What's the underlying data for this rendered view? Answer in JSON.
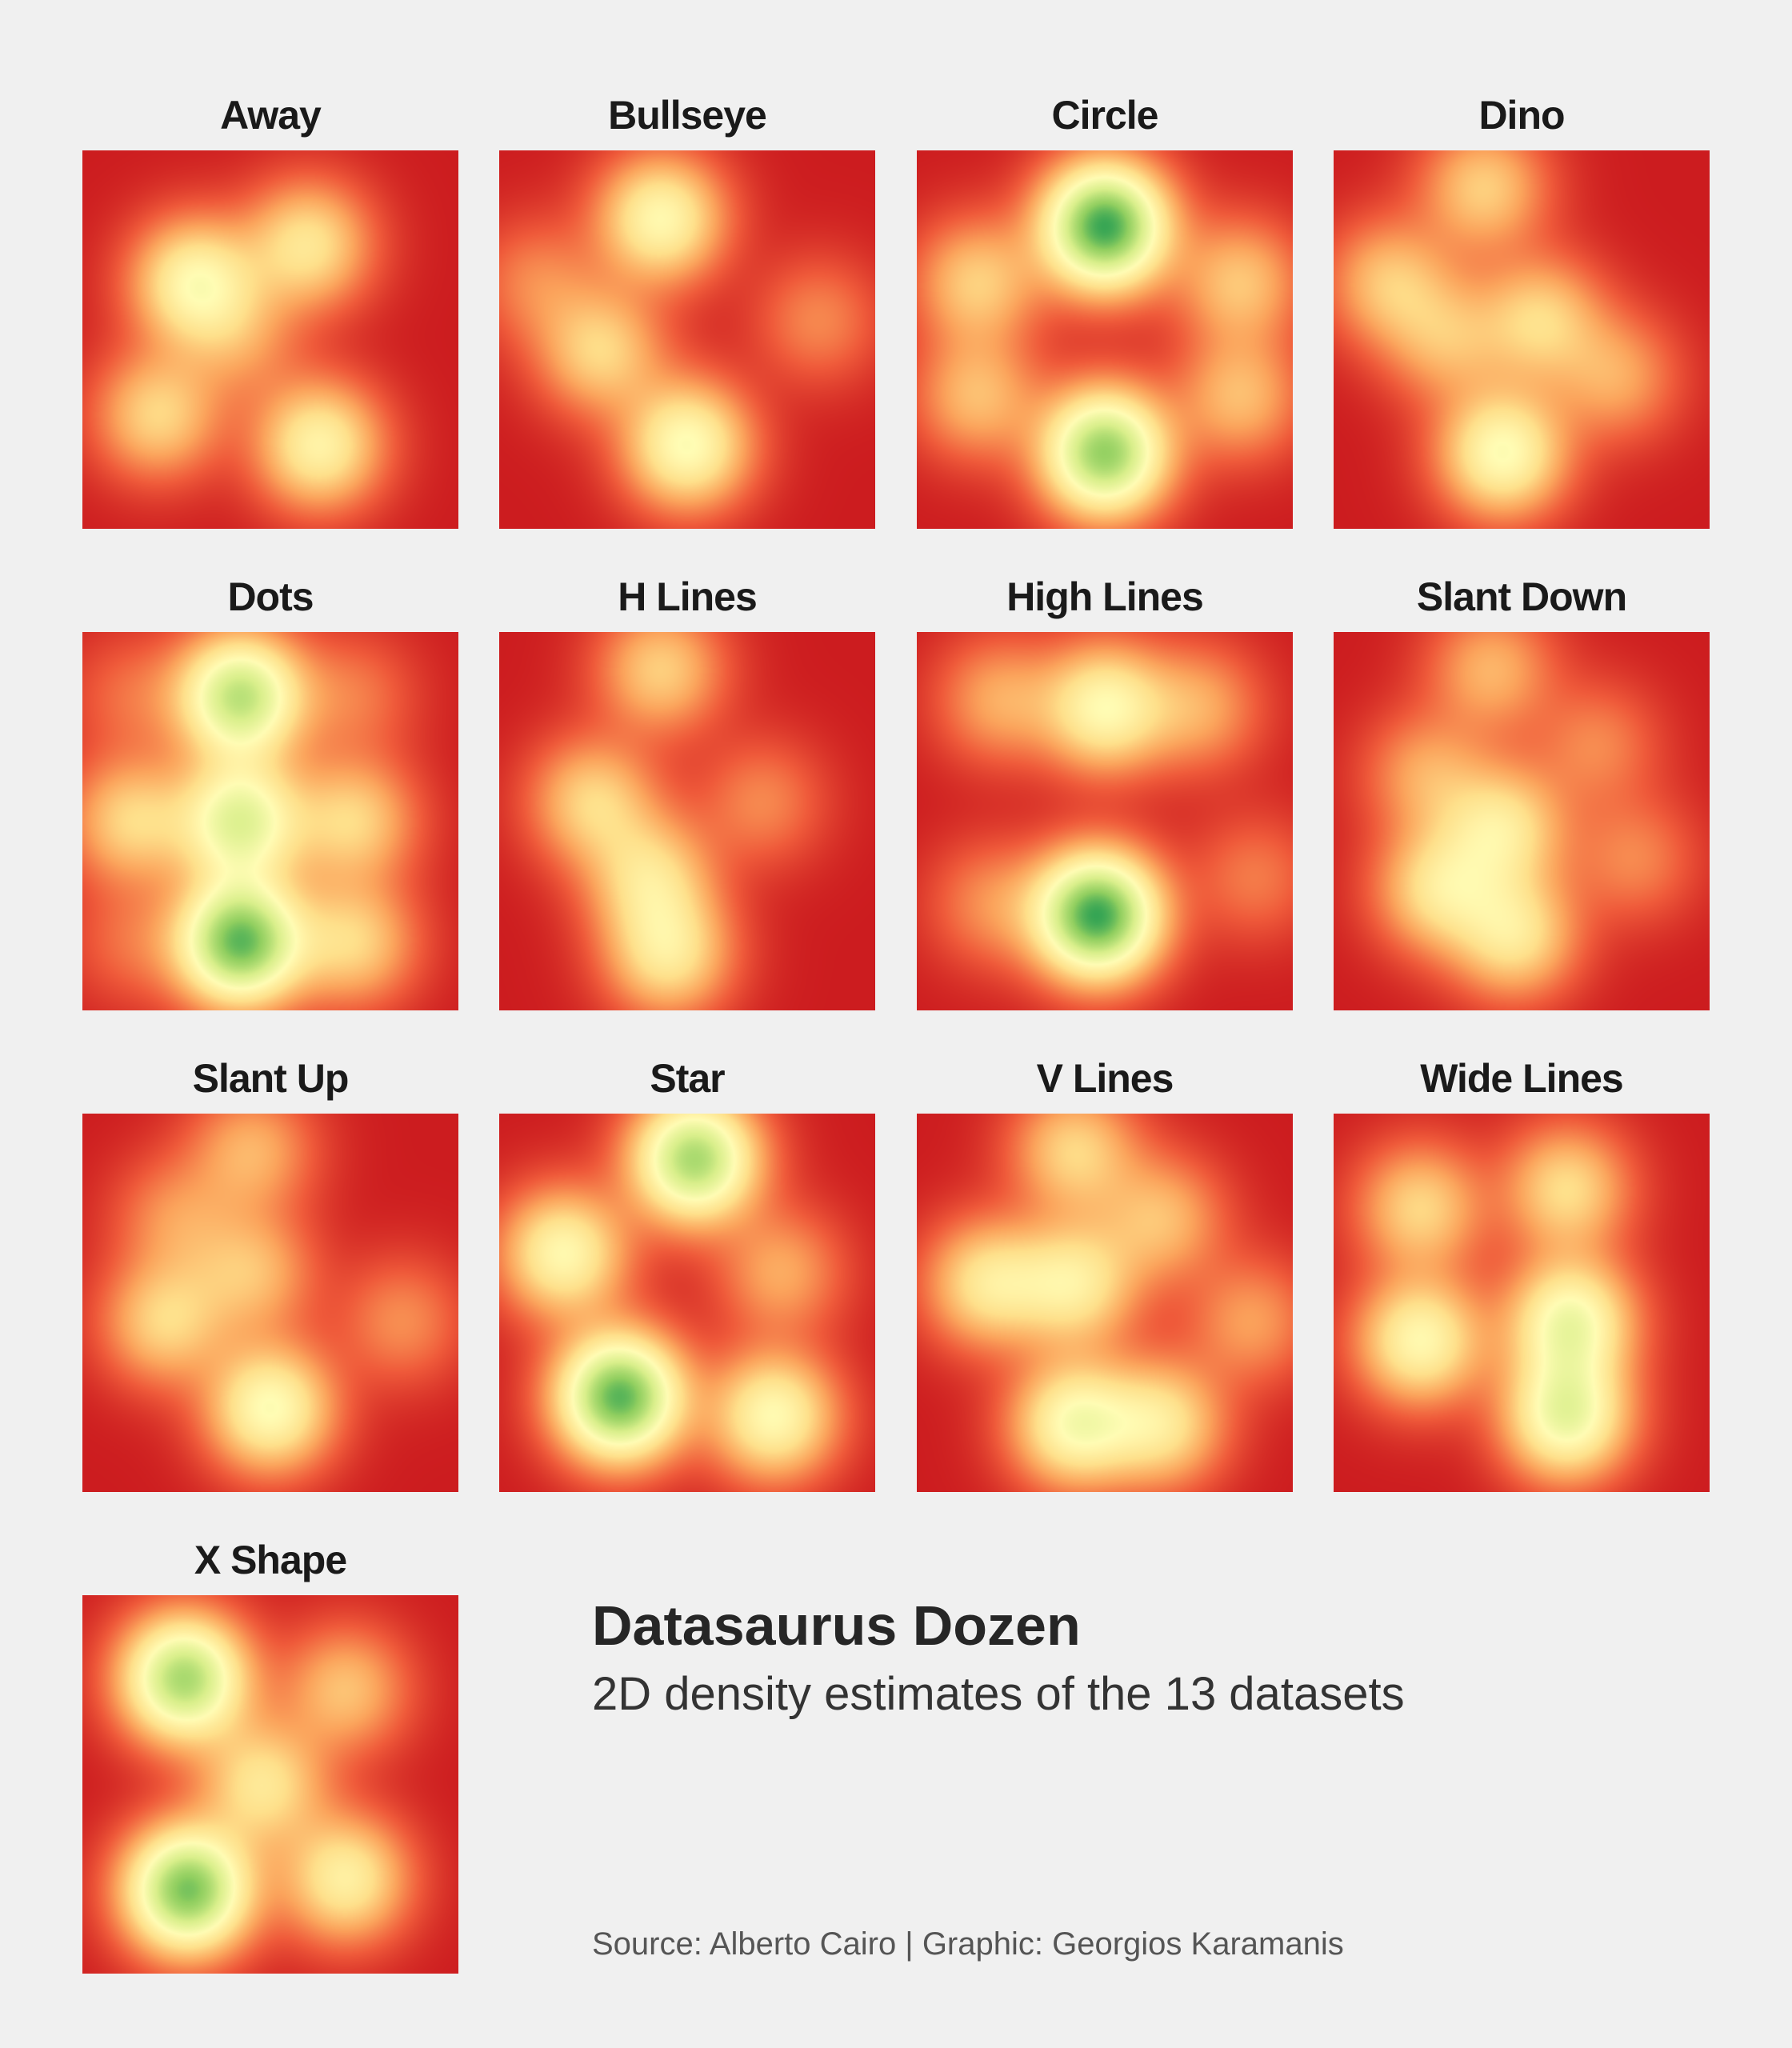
{
  "title": "Datasaurus Dozen",
  "subtitle": "2D density estimates of the 13 datasets",
  "source": "Source: Alberto Cairo | Graphic: Georgios Karamanis",
  "color_scale": [
    "#cc1c1f",
    "#ef5a3a",
    "#fba45c",
    "#fee08b",
    "#fffcb4",
    "#d9ef8b",
    "#91cf60",
    "#1a9850"
  ],
  "chart_data": [
    {
      "type": "heatmap",
      "title": "Away",
      "xlim": [
        0,
        100
      ],
      "ylim": [
        0,
        100
      ],
      "peaks": [
        {
          "x": 30,
          "y": 65,
          "density": 0.45
        },
        {
          "x": 60,
          "y": 75,
          "density": 0.35
        },
        {
          "x": 63,
          "y": 22,
          "density": 0.42
        },
        {
          "x": 20,
          "y": 30,
          "density": 0.3
        },
        {
          "x": 42,
          "y": 50,
          "density": 0.15
        }
      ]
    },
    {
      "type": "heatmap",
      "title": "Bullseye",
      "xlim": [
        0,
        100
      ],
      "ylim": [
        0,
        100
      ],
      "peaks": [
        {
          "x": 43,
          "y": 82,
          "density": 0.45
        },
        {
          "x": 50,
          "y": 22,
          "density": 0.48
        },
        {
          "x": 27,
          "y": 47,
          "density": 0.3
        },
        {
          "x": 10,
          "y": 65,
          "density": 0.14
        },
        {
          "x": 85,
          "y": 55,
          "density": 0.14
        }
      ]
    },
    {
      "type": "heatmap",
      "title": "Circle",
      "xlim": [
        0,
        100
      ],
      "ylim": [
        0,
        100
      ],
      "peaks": [
        {
          "x": 50,
          "y": 80,
          "density": 0.95
        },
        {
          "x": 50,
          "y": 20,
          "density": 0.8
        },
        {
          "x": 16,
          "y": 65,
          "density": 0.28
        },
        {
          "x": 86,
          "y": 65,
          "density": 0.26
        },
        {
          "x": 16,
          "y": 35,
          "density": 0.24
        },
        {
          "x": 86,
          "y": 35,
          "density": 0.24
        }
      ]
    },
    {
      "type": "heatmap",
      "title": "Dino",
      "xlim": [
        0,
        100
      ],
      "ylim": [
        0,
        100
      ],
      "peaks": [
        {
          "x": 45,
          "y": 20,
          "density": 0.48
        },
        {
          "x": 40,
          "y": 90,
          "density": 0.28
        },
        {
          "x": 15,
          "y": 65,
          "density": 0.26
        },
        {
          "x": 55,
          "y": 55,
          "density": 0.3
        },
        {
          "x": 75,
          "y": 40,
          "density": 0.2
        },
        {
          "x": 30,
          "y": 50,
          "density": 0.22
        }
      ]
    },
    {
      "type": "heatmap",
      "title": "Dots",
      "xlim": [
        0,
        100
      ],
      "ylim": [
        0,
        100
      ],
      "peaks": [
        {
          "x": 42,
          "y": 83,
          "density": 0.7
        },
        {
          "x": 42,
          "y": 50,
          "density": 0.58
        },
        {
          "x": 42,
          "y": 18,
          "density": 0.88
        },
        {
          "x": 13,
          "y": 50,
          "density": 0.3
        },
        {
          "x": 72,
          "y": 50,
          "density": 0.3
        },
        {
          "x": 72,
          "y": 18,
          "density": 0.3
        },
        {
          "x": 72,
          "y": 83,
          "density": 0.12
        },
        {
          "x": 13,
          "y": 83,
          "density": 0.1
        },
        {
          "x": 13,
          "y": 18,
          "density": 0.1
        }
      ]
    },
    {
      "type": "heatmap",
      "title": "H Lines",
      "xlim": [
        0,
        100
      ],
      "ylim": [
        0,
        100
      ],
      "peaks": [
        {
          "x": 43,
          "y": 90,
          "density": 0.28
        },
        {
          "x": 25,
          "y": 55,
          "density": 0.3
        },
        {
          "x": 40,
          "y": 35,
          "density": 0.32
        },
        {
          "x": 45,
          "y": 15,
          "density": 0.36
        },
        {
          "x": 70,
          "y": 55,
          "density": 0.14
        }
      ]
    },
    {
      "type": "heatmap",
      "title": "High Lines",
      "xlim": [
        0,
        100
      ],
      "ylim": [
        0,
        100
      ],
      "peaks": [
        {
          "x": 50,
          "y": 80,
          "density": 0.45
        },
        {
          "x": 22,
          "y": 82,
          "density": 0.2
        },
        {
          "x": 75,
          "y": 80,
          "density": 0.2
        },
        {
          "x": 48,
          "y": 25,
          "density": 0.95
        },
        {
          "x": 20,
          "y": 28,
          "density": 0.15
        },
        {
          "x": 90,
          "y": 35,
          "density": 0.12
        }
      ]
    },
    {
      "type": "heatmap",
      "title": "Slant Down",
      "xlim": [
        0,
        100
      ],
      "ylim": [
        0,
        100
      ],
      "peaks": [
        {
          "x": 25,
          "y": 62,
          "density": 0.2
        },
        {
          "x": 42,
          "y": 90,
          "density": 0.22
        },
        {
          "x": 45,
          "y": 48,
          "density": 0.36
        },
        {
          "x": 28,
          "y": 32,
          "density": 0.34
        },
        {
          "x": 48,
          "y": 20,
          "density": 0.36
        },
        {
          "x": 70,
          "y": 70,
          "density": 0.14
        },
        {
          "x": 80,
          "y": 40,
          "density": 0.14
        }
      ]
    },
    {
      "type": "heatmap",
      "title": "Slant Up",
      "xlim": [
        0,
        100
      ],
      "ylim": [
        0,
        100
      ],
      "peaks": [
        {
          "x": 50,
          "y": 22,
          "density": 0.48
        },
        {
          "x": 22,
          "y": 45,
          "density": 0.3
        },
        {
          "x": 45,
          "y": 58,
          "density": 0.24
        },
        {
          "x": 45,
          "y": 90,
          "density": 0.22
        },
        {
          "x": 25,
          "y": 72,
          "density": 0.16
        },
        {
          "x": 85,
          "y": 45,
          "density": 0.15
        }
      ]
    },
    {
      "type": "heatmap",
      "title": "Star",
      "xlim": [
        0,
        100
      ],
      "ylim": [
        0,
        100
      ],
      "peaks": [
        {
          "x": 52,
          "y": 88,
          "density": 0.75
        },
        {
          "x": 17,
          "y": 63,
          "density": 0.45
        },
        {
          "x": 32,
          "y": 25,
          "density": 0.9
        },
        {
          "x": 73,
          "y": 20,
          "density": 0.46
        },
        {
          "x": 75,
          "y": 58,
          "density": 0.2
        }
      ]
    },
    {
      "type": "heatmap",
      "title": "V Lines",
      "xlim": [
        0,
        100
      ],
      "ylim": [
        0,
        100
      ],
      "peaks": [
        {
          "x": 42,
          "y": 90,
          "density": 0.3
        },
        {
          "x": 42,
          "y": 55,
          "density": 0.38
        },
        {
          "x": 42,
          "y": 18,
          "density": 0.48
        },
        {
          "x": 19,
          "y": 55,
          "density": 0.36
        },
        {
          "x": 65,
          "y": 72,
          "density": 0.24
        },
        {
          "x": 65,
          "y": 18,
          "density": 0.36
        },
        {
          "x": 89,
          "y": 45,
          "density": 0.18
        }
      ]
    },
    {
      "type": "heatmap",
      "title": "Wide Lines",
      "xlim": [
        0,
        100
      ],
      "ylim": [
        0,
        100
      ],
      "peaks": [
        {
          "x": 23,
          "y": 75,
          "density": 0.3
        },
        {
          "x": 23,
          "y": 40,
          "density": 0.45
        },
        {
          "x": 62,
          "y": 80,
          "density": 0.32
        },
        {
          "x": 63,
          "y": 45,
          "density": 0.52
        },
        {
          "x": 62,
          "y": 20,
          "density": 0.55
        }
      ]
    },
    {
      "type": "heatmap",
      "title": "X Shape",
      "xlim": [
        0,
        100
      ],
      "ylim": [
        0,
        100
      ],
      "peaks": [
        {
          "x": 27,
          "y": 78,
          "density": 0.75
        },
        {
          "x": 28,
          "y": 22,
          "density": 0.85
        },
        {
          "x": 70,
          "y": 25,
          "density": 0.4
        },
        {
          "x": 70,
          "y": 75,
          "density": 0.25
        },
        {
          "x": 48,
          "y": 50,
          "density": 0.35
        }
      ]
    }
  ]
}
